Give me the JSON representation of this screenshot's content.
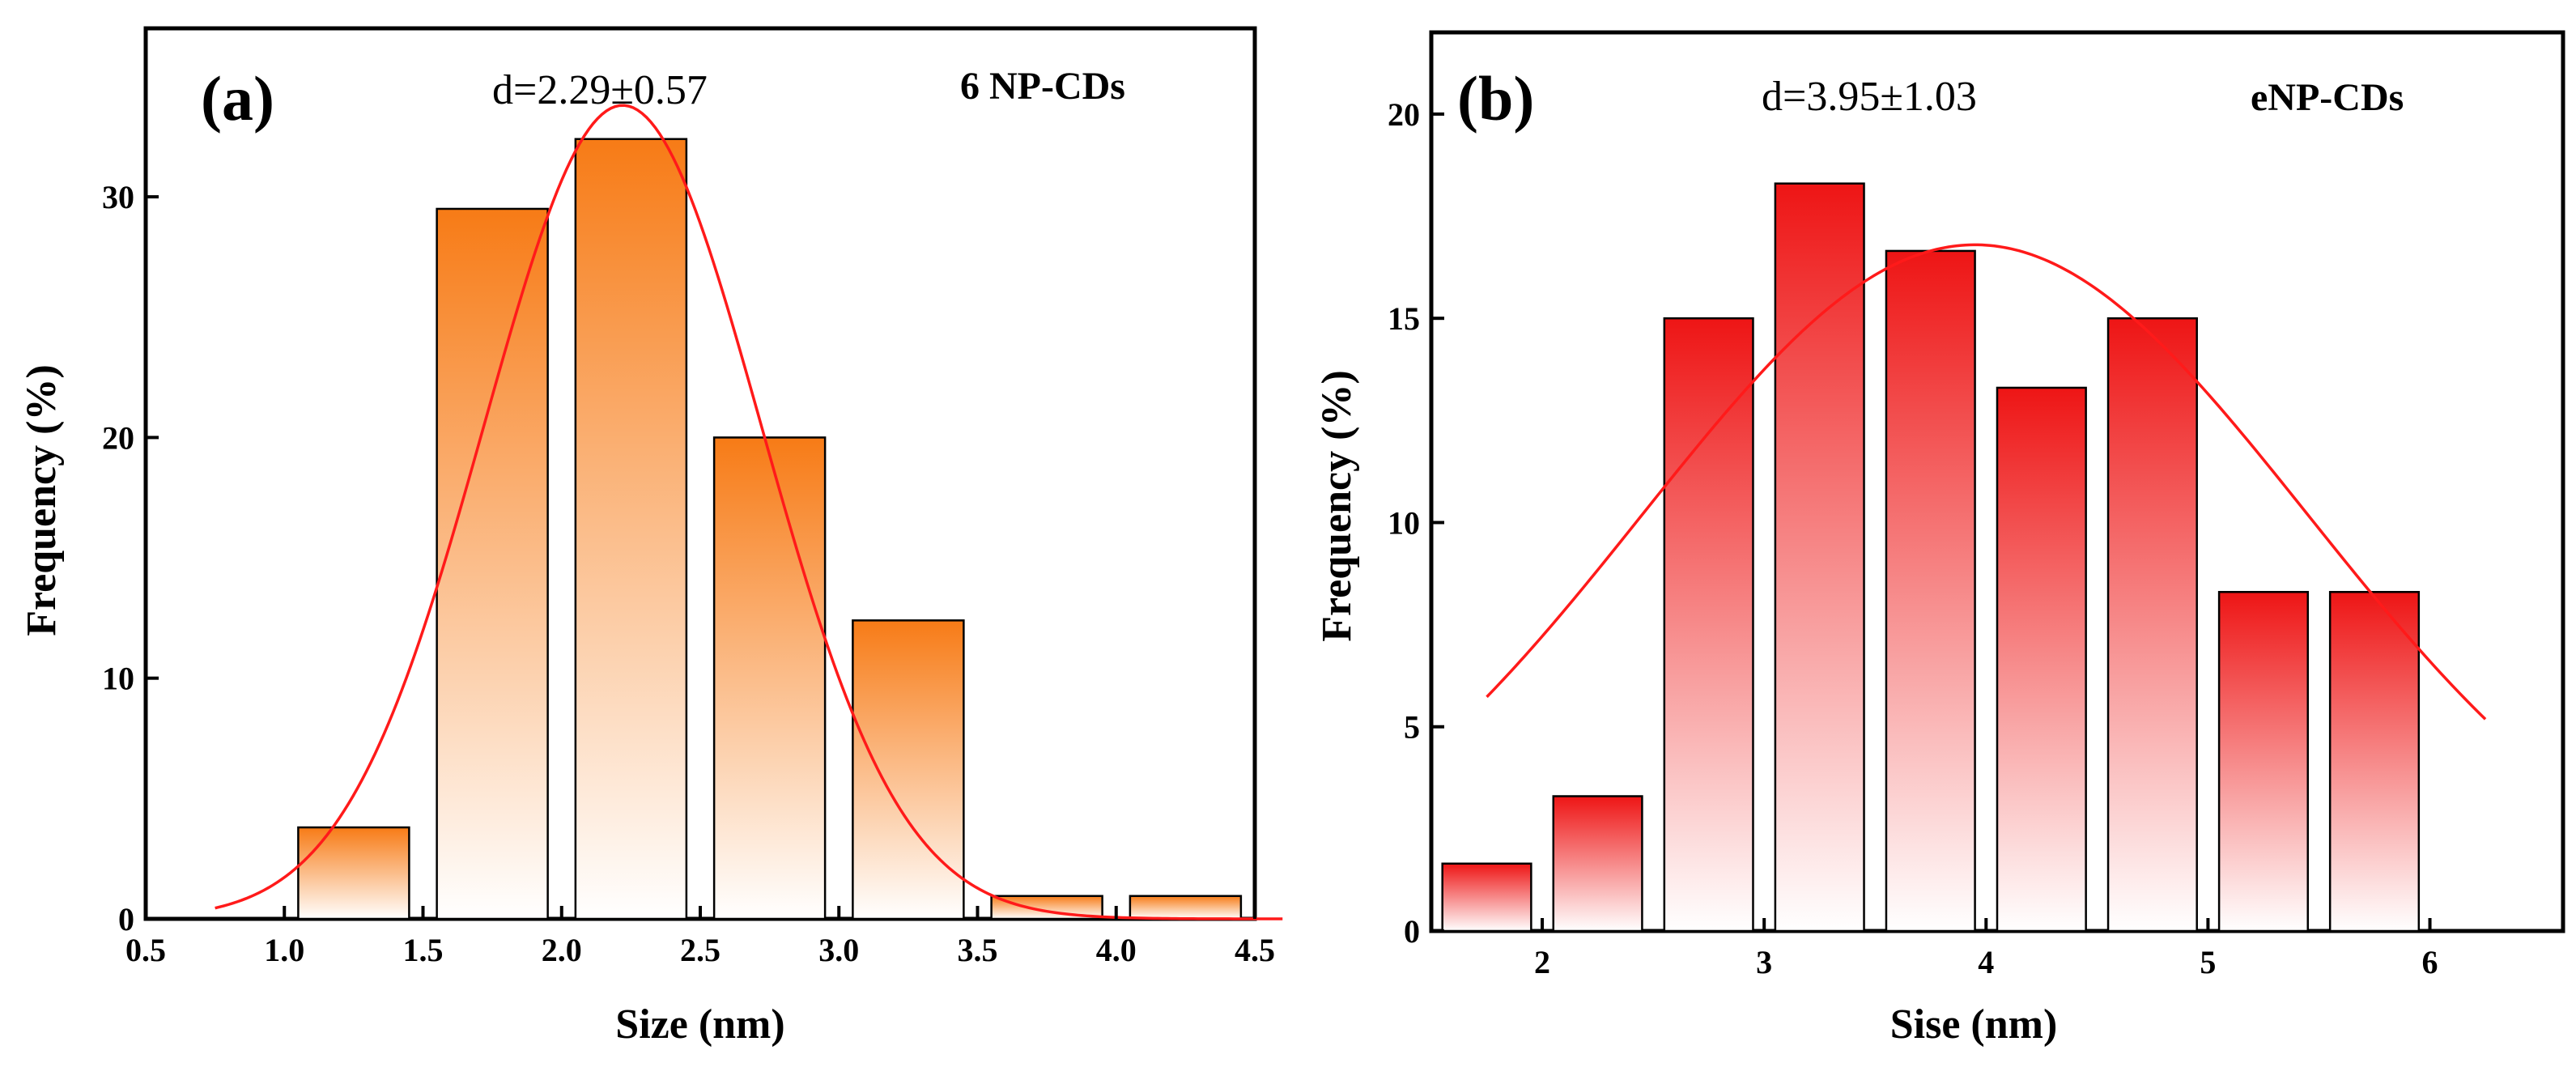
{
  "chart_data": [
    {
      "type": "bar",
      "panel_label": "(a)",
      "annotation": "d=2.29±0.57",
      "legend": "6 NP-CDs",
      "xlabel": "Size (nm)",
      "ylabel": "Frequency (%)",
      "xlim": [
        0.5,
        4.5
      ],
      "ylim": [
        0,
        37
      ],
      "xticks": [
        "0.5",
        "1.0",
        "1.5",
        "2.0",
        "2.5",
        "3.0",
        "3.5",
        "4.0",
        "4.5"
      ],
      "yticks": [
        "0",
        "10",
        "20",
        "30"
      ],
      "bin_width": 0.5,
      "bar_width": 0.4,
      "bin_centers": [
        1.25,
        1.75,
        2.25,
        2.75,
        3.25,
        3.75,
        4.25
      ],
      "values": [
        3.8,
        29.5,
        32.4,
        20.0,
        12.4,
        0.95,
        0.95
      ],
      "bar_color_top": "#f77b16",
      "bar_color_bottom": "#ffffff",
      "fit": {
        "type": "gaussian",
        "center": 2.22,
        "sigma": 0.5,
        "amplitude": 33.8,
        "x_range": [
          0.75,
          4.6
        ],
        "color": "#ff1a1a"
      }
    },
    {
      "type": "bar",
      "panel_label": "(b)",
      "annotation": "d=3.95±1.03",
      "legend": "eNP-CDs",
      "xlabel": "Sise (nm)",
      "ylabel": "Frequency (%)",
      "xlim": [
        1.5,
        6.6
      ],
      "ylim": [
        0,
        22
      ],
      "xticks": [
        "2",
        "3",
        "4",
        "5",
        "6"
      ],
      "yticks": [
        "0",
        "5",
        "10",
        "15",
        "20"
      ],
      "bin_width": 0.5,
      "bar_width": 0.4,
      "bin_centers": [
        1.75,
        2.25,
        2.75,
        3.25,
        3.75,
        4.25,
        4.75,
        5.25,
        5.75
      ],
      "values": [
        1.65,
        3.3,
        15.0,
        18.3,
        16.65,
        13.3,
        15.0,
        8.3,
        8.3
      ],
      "bar_color_top": "#ee1515",
      "bar_color_bottom": "#ffffff",
      "fit": {
        "type": "gaussian",
        "center": 3.95,
        "sigma": 1.5,
        "amplitude": 16.8,
        "x_range": [
          1.75,
          6.25
        ],
        "color": "#ff1a1a"
      }
    }
  ]
}
